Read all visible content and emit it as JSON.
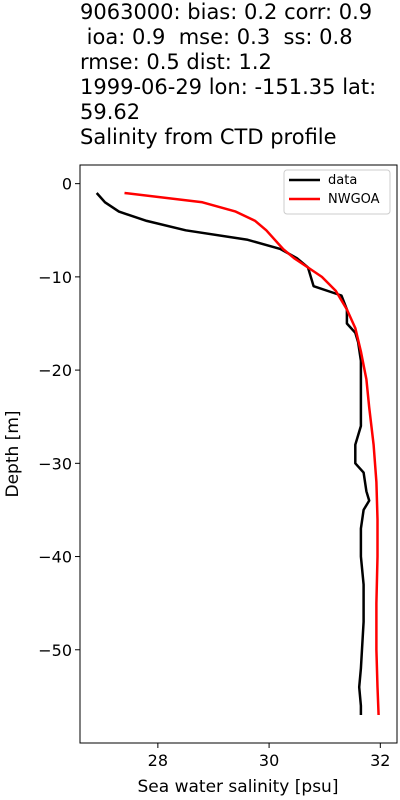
{
  "title_lines": [
    "9063000: bias: 0.2  corr: 0.9",
    " ioa: 0.9  mse: 0.3  ss: 0.8",
    "rmse: 0.5  dist: 1.2",
    "1999-06-29 lon: -151.35 lat:",
    "59.62",
    "Salinity from CTD profile"
  ],
  "chart_data": {
    "type": "line",
    "title": "Salinity from CTD profile",
    "xlabel": "Sea water salinity [psu]",
    "ylabel": "Depth [m]",
    "xlim": [
      26.6,
      32.3
    ],
    "ylim": [
      -60,
      2.0
    ],
    "xticks": [
      28,
      30,
      32
    ],
    "yticks": [
      0,
      -10,
      -20,
      -30,
      -40,
      -50
    ],
    "ytick_labels": [
      "0",
      "−10",
      "−20",
      "−30",
      "−40",
      "−50"
    ],
    "legend_position": "upper right",
    "series": [
      {
        "name": "data",
        "color": "#000000",
        "points": [
          [
            26.9,
            -1
          ],
          [
            27.05,
            -2
          ],
          [
            27.3,
            -3
          ],
          [
            27.8,
            -4
          ],
          [
            28.5,
            -5
          ],
          [
            29.6,
            -6
          ],
          [
            30.2,
            -7
          ],
          [
            30.5,
            -8
          ],
          [
            30.7,
            -9
          ],
          [
            30.8,
            -11
          ],
          [
            31.3,
            -12
          ],
          [
            31.4,
            -13.5
          ],
          [
            31.4,
            -15
          ],
          [
            31.55,
            -16
          ],
          [
            31.6,
            -17
          ],
          [
            31.65,
            -19
          ],
          [
            31.65,
            -22
          ],
          [
            31.65,
            -26
          ],
          [
            31.6,
            -27
          ],
          [
            31.55,
            -28
          ],
          [
            31.55,
            -30
          ],
          [
            31.7,
            -31
          ],
          [
            31.75,
            -33
          ],
          [
            31.8,
            -34
          ],
          [
            31.7,
            -35
          ],
          [
            31.65,
            -37
          ],
          [
            31.65,
            -40
          ],
          [
            31.7,
            -43
          ],
          [
            31.7,
            -47
          ],
          [
            31.65,
            -52
          ],
          [
            31.62,
            -54
          ],
          [
            31.65,
            -56
          ],
          [
            31.65,
            -57
          ]
        ]
      },
      {
        "name": "NWGOA",
        "color": "#ff0000",
        "points": [
          [
            27.4,
            -1
          ],
          [
            28.8,
            -2
          ],
          [
            29.4,
            -3
          ],
          [
            29.75,
            -4
          ],
          [
            29.95,
            -5
          ],
          [
            30.1,
            -6
          ],
          [
            30.25,
            -7
          ],
          [
            30.45,
            -8
          ],
          [
            30.7,
            -9
          ],
          [
            30.95,
            -10
          ],
          [
            31.2,
            -11.5
          ],
          [
            31.4,
            -13.5
          ],
          [
            31.55,
            -15.5
          ],
          [
            31.65,
            -18
          ],
          [
            31.75,
            -21
          ],
          [
            31.8,
            -24
          ],
          [
            31.88,
            -28
          ],
          [
            31.93,
            -32
          ],
          [
            31.95,
            -36
          ],
          [
            31.95,
            -40
          ],
          [
            31.93,
            -45
          ],
          [
            31.93,
            -50
          ],
          [
            31.95,
            -54
          ],
          [
            31.97,
            -57
          ]
        ]
      }
    ]
  }
}
